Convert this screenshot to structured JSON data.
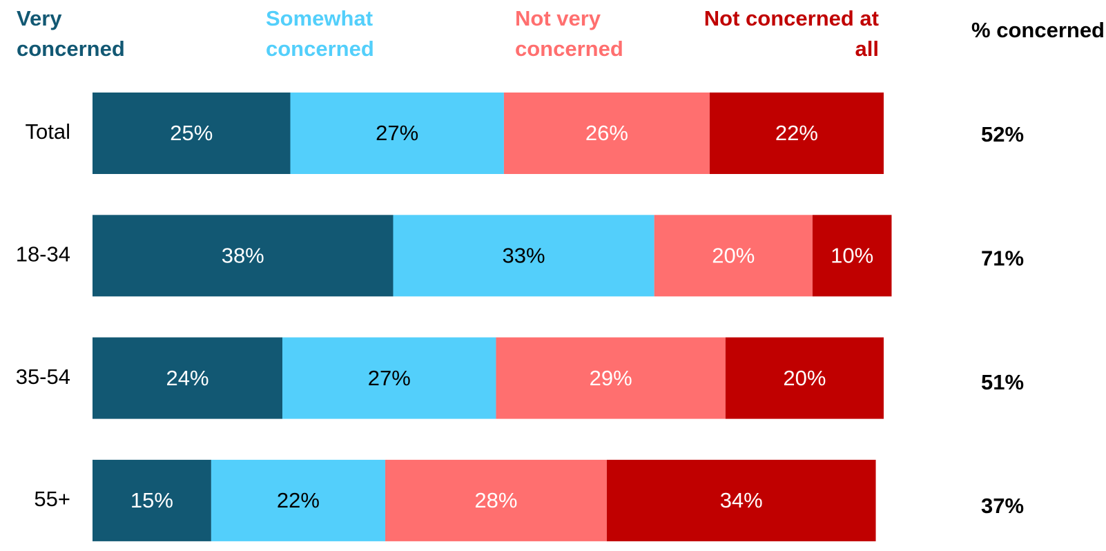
{
  "chart_data": {
    "type": "stacked-bar",
    "categories": [
      "Total",
      "18-34",
      "35-54",
      "55+"
    ],
    "series": [
      {
        "name": "Very concerned",
        "color": "#125873",
        "label_color": "#ffffff",
        "values": [
          25,
          38,
          24,
          15
        ],
        "value_labels": [
          "25%",
          "38%",
          "24%",
          "15%"
        ]
      },
      {
        "name": "Somewhat concerned",
        "color": "#53cffb",
        "label_color": "#000000",
        "values": [
          27,
          33,
          27,
          22
        ],
        "value_labels": [
          "27%",
          "33%",
          "27%",
          "22%"
        ]
      },
      {
        "name": "Not very concerned",
        "color": "#ff6f6f",
        "label_color": "#ffffff",
        "values": [
          26,
          20,
          29,
          28
        ],
        "value_labels": [
          "26%",
          "20%",
          "29%",
          "28%"
        ]
      },
      {
        "name": "Not concerned at all",
        "color": "#c00000",
        "label_color": "#ffffff",
        "values": [
          22,
          10,
          20,
          34
        ],
        "value_labels": [
          "22%",
          "10%",
          "20%",
          "34%"
        ]
      }
    ],
    "xlim": [
      0,
      100
    ],
    "summary": {
      "name": "% concerned",
      "values": [
        52,
        71,
        51,
        37
      ],
      "value_labels": [
        "52%",
        "71%",
        "51%",
        "37%"
      ]
    }
  }
}
